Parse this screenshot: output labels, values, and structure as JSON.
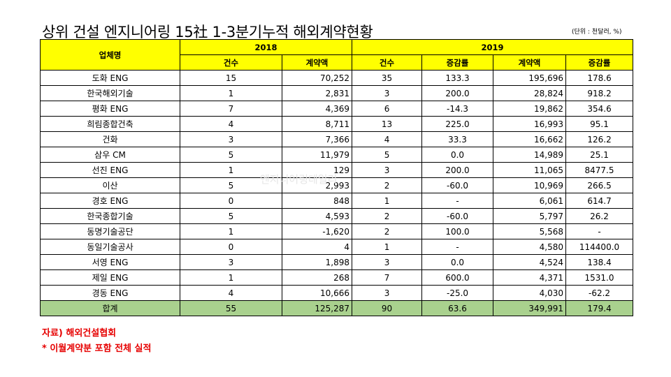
{
  "title": "상위 건설 엔지니어링 15社 1-3분기누적 해외계약현황",
  "unit": "(단위 : 천달러, %)",
  "watermark": "엔지니어링데일리",
  "header": {
    "company": "업체명",
    "year_2018": "2018",
    "year_2019": "2019",
    "count": "건수",
    "amount": "계약액",
    "count2": "건수",
    "growth": "증감률",
    "amount2": "계약액",
    "growth2": "증감률"
  },
  "rows": [
    {
      "company": "도화 ENG",
      "c2018": "15",
      "a2018": "70,252",
      "c2019": "35",
      "g_count": "133.3",
      "a2019": "195,696",
      "g_amount": "178.6"
    },
    {
      "company": "한국해외기술",
      "c2018": "1",
      "a2018": "2,831",
      "c2019": "3",
      "g_count": "200.0",
      "a2019": "28,824",
      "g_amount": "918.2"
    },
    {
      "company": "평화 ENG",
      "c2018": "7",
      "a2018": "4,369",
      "c2019": "6",
      "g_count": "-14.3",
      "a2019": "19,862",
      "g_amount": "354.6"
    },
    {
      "company": "희림종합건축",
      "c2018": "4",
      "a2018": "8,711",
      "c2019": "13",
      "g_count": "225.0",
      "a2019": "16,993",
      "g_amount": "95.1"
    },
    {
      "company": "건화",
      "c2018": "3",
      "a2018": "7,366",
      "c2019": "4",
      "g_count": "33.3",
      "a2019": "16,662",
      "g_amount": "126.2"
    },
    {
      "company": "삼우 CM",
      "c2018": "5",
      "a2018": "11,979",
      "c2019": "5",
      "g_count": "0.0",
      "a2019": "14,989",
      "g_amount": "25.1"
    },
    {
      "company": "선진 ENG",
      "c2018": "1",
      "a2018": "129",
      "c2019": "3",
      "g_count": "200.0",
      "a2019": "11,065",
      "g_amount": "8477.5"
    },
    {
      "company": "이산",
      "c2018": "5",
      "a2018": "2,993",
      "c2019": "2",
      "g_count": "-60.0",
      "a2019": "10,969",
      "g_amount": "266.5"
    },
    {
      "company": "경호 ENG",
      "c2018": "0",
      "a2018": "848",
      "c2019": "1",
      "g_count": "-",
      "a2019": "6,061",
      "g_amount": "614.7"
    },
    {
      "company": "한국종합기술",
      "c2018": "5",
      "a2018": "4,593",
      "c2019": "2",
      "g_count": "-60.0",
      "a2019": "5,797",
      "g_amount": "26.2"
    },
    {
      "company": "동명기술공단",
      "c2018": "1",
      "a2018": "-1,620",
      "c2019": "2",
      "g_count": "100.0",
      "a2019": "5,568",
      "g_amount": "-"
    },
    {
      "company": "동일기술공사",
      "c2018": "0",
      "a2018": "4",
      "c2019": "1",
      "g_count": "-",
      "a2019": "4,580",
      "g_amount": "114400.0"
    },
    {
      "company": "서영 ENG",
      "c2018": "3",
      "a2018": "1,898",
      "c2019": "3",
      "g_count": "0.0",
      "a2019": "4,524",
      "g_amount": "138.4"
    },
    {
      "company": "제일 ENG",
      "c2018": "1",
      "a2018": "268",
      "c2019": "7",
      "g_count": "600.0",
      "a2019": "4,371",
      "g_amount": "1531.0"
    },
    {
      "company": "경동 ENG",
      "c2018": "4",
      "a2018": "10,666",
      "c2019": "3",
      "g_count": "-25.0",
      "a2019": "4,030",
      "g_amount": "-62.2"
    }
  ],
  "total": {
    "company": "합계",
    "c2018": "55",
    "a2018": "125,287",
    "c2019": "90",
    "g_count": "63.6",
    "a2019": "349,991",
    "g_amount": "179.4"
  },
  "notes": {
    "source": "자료) 해외건설협회",
    "footnote": "* 이월계약분 포함 전체 실적"
  },
  "colors": {
    "header_bg": "#ffff00",
    "total_bg": "#a9d18e",
    "note_text": "#e60000"
  }
}
